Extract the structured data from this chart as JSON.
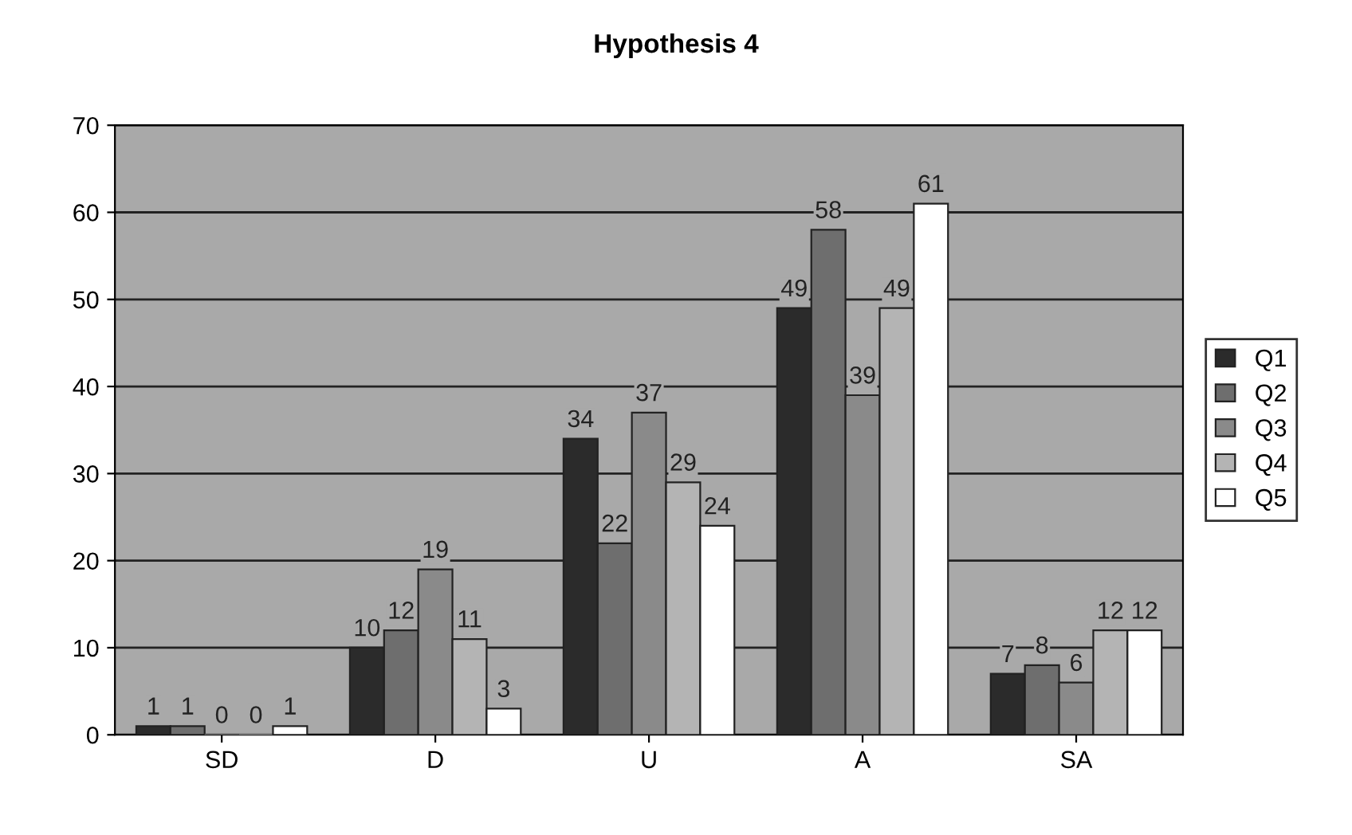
{
  "chart_data": {
    "type": "bar",
    "title": "Hypothesis 4",
    "categories": [
      "SD",
      "D",
      "U",
      "A",
      "SA"
    ],
    "series": [
      {
        "name": "Q1",
        "color": "#2b2b2b",
        "values": [
          1,
          10,
          34,
          49,
          7
        ]
      },
      {
        "name": "Q2",
        "color": "#6e6e6e",
        "values": [
          1,
          12,
          22,
          58,
          8
        ]
      },
      {
        "name": "Q3",
        "color": "#8a8a8a",
        "values": [
          0,
          19,
          37,
          39,
          6
        ]
      },
      {
        "name": "Q4",
        "color": "#b4b4b4",
        "values": [
          0,
          11,
          29,
          49,
          12
        ]
      },
      {
        "name": "Q5",
        "color": "#ffffff",
        "values": [
          1,
          3,
          24,
          61,
          12
        ]
      }
    ],
    "ylim": [
      0,
      70
    ],
    "yticks": [
      0,
      10,
      20,
      30,
      40,
      50,
      60,
      70
    ],
    "grid": "y",
    "legend": "right",
    "data_labels": true
  }
}
